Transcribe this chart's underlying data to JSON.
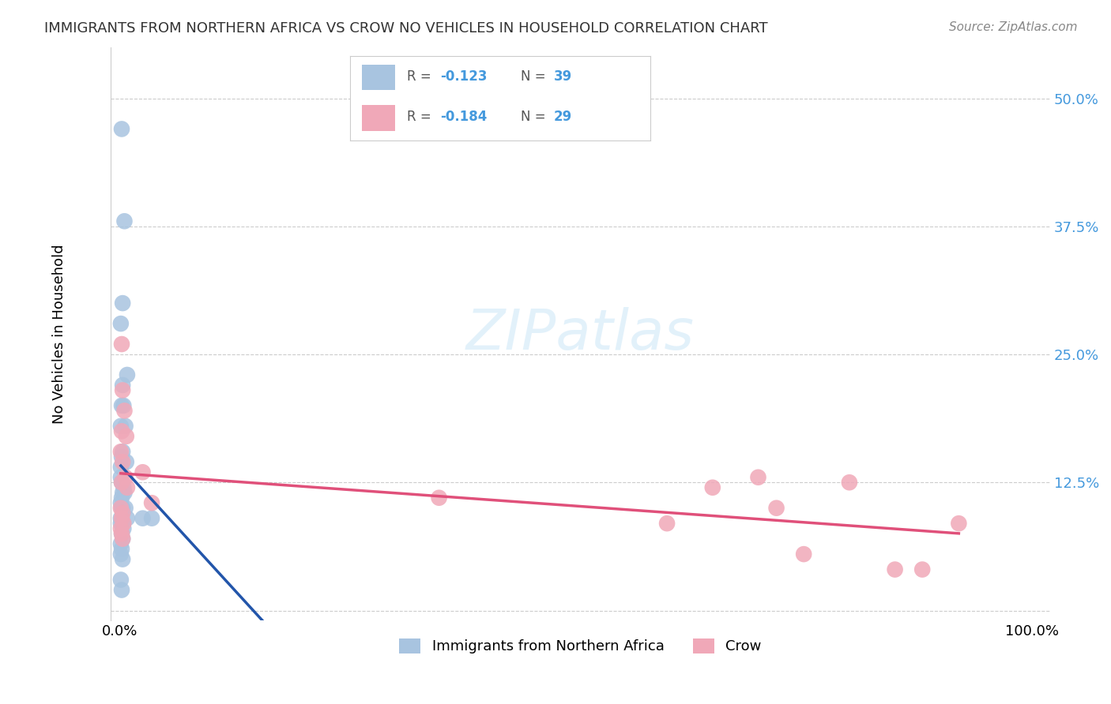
{
  "title": "IMMIGRANTS FROM NORTHERN AFRICA VS CROW NO VEHICLES IN HOUSEHOLD CORRELATION CHART",
  "source": "Source: ZipAtlas.com",
  "ylabel": "No Vehicles in Household",
  "yticks": [
    0.0,
    0.125,
    0.25,
    0.375,
    0.5
  ],
  "ytick_labels": [
    "",
    "12.5%",
    "25.0%",
    "37.5%",
    "50.0%"
  ],
  "legend_label1": "Immigrants from Northern Africa",
  "legend_label2": "Crow",
  "r1": -0.123,
  "n1": 39,
  "r2": -0.184,
  "n2": 29,
  "blue_color": "#a8c4e0",
  "pink_color": "#f0a8b8",
  "line_blue": "#2255aa",
  "line_pink": "#e0507a",
  "watermark": "ZIPatlas",
  "blue_x": [
    0.002,
    0.005,
    0.003,
    0.001,
    0.008,
    0.002,
    0.003,
    0.004,
    0.001,
    0.006,
    0.002,
    0.001,
    0.003,
    0.007,
    0.001,
    0.002,
    0.004,
    0.005,
    0.003,
    0.002,
    0.001,
    0.002,
    0.006,
    0.003,
    0.001,
    0.008,
    0.025,
    0.035,
    0.003,
    0.001,
    0.004,
    0.002,
    0.003,
    0.001,
    0.002,
    0.001,
    0.003,
    0.001,
    0.002
  ],
  "blue_y": [
    0.47,
    0.38,
    0.3,
    0.28,
    0.23,
    0.2,
    0.22,
    0.2,
    0.18,
    0.18,
    0.15,
    0.14,
    0.155,
    0.145,
    0.13,
    0.125,
    0.12,
    0.115,
    0.115,
    0.11,
    0.105,
    0.1,
    0.1,
    0.1,
    0.09,
    0.09,
    0.09,
    0.09,
    0.085,
    0.085,
    0.08,
    0.075,
    0.07,
    0.065,
    0.06,
    0.055,
    0.05,
    0.03,
    0.02
  ],
  "pink_x": [
    0.002,
    0.003,
    0.005,
    0.002,
    0.007,
    0.001,
    0.003,
    0.006,
    0.002,
    0.008,
    0.025,
    0.035,
    0.001,
    0.003,
    0.002,
    0.004,
    0.001,
    0.002,
    0.003,
    0.35,
    0.6,
    0.65,
    0.7,
    0.72,
    0.75,
    0.8,
    0.85,
    0.88,
    0.92
  ],
  "pink_y": [
    0.26,
    0.215,
    0.195,
    0.175,
    0.17,
    0.155,
    0.145,
    0.13,
    0.125,
    0.12,
    0.135,
    0.105,
    0.1,
    0.095,
    0.09,
    0.085,
    0.08,
    0.075,
    0.07,
    0.11,
    0.085,
    0.12,
    0.13,
    0.1,
    0.055,
    0.125,
    0.04,
    0.04,
    0.085
  ]
}
